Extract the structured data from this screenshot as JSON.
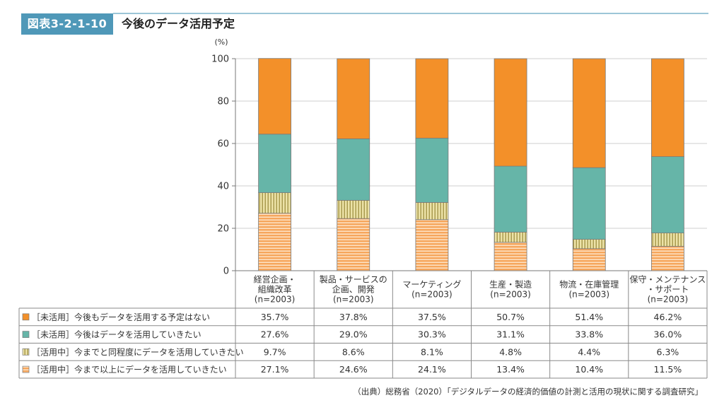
{
  "figure": {
    "label": "図表3-2-1-10",
    "title": "今後のデータ活用予定",
    "source": "（出典）総務省（2020）「デジタルデータの経済的価値の計測と活用の現状に関する調査研究」"
  },
  "chart_data": {
    "type": "bar",
    "stacked": true,
    "ylabel": "(%)",
    "ylim": [
      0,
      100
    ],
    "yticks": [
      0,
      20,
      40,
      60,
      80,
      100
    ],
    "grid": true,
    "categories": [
      [
        "経営企画・",
        "組織改革",
        "(n=2003)"
      ],
      [
        "製品・サービスの",
        "企画、開発",
        "(n=2003)"
      ],
      [
        "マーケティング",
        "(n=2003)"
      ],
      [
        "生産・製造",
        "(n=2003)"
      ],
      [
        "物流・在庫管理",
        "(n=2003)"
      ],
      [
        "保守・メンテナンス",
        "・サポート",
        "(n=2003)"
      ]
    ],
    "series": [
      {
        "name": "［活用中］今まで以上にデータを活用していきたい",
        "color": "#f6a65c",
        "pattern": "horizontal-lines",
        "values": [
          27.1,
          24.6,
          24.1,
          13.4,
          10.4,
          11.5
        ],
        "labels": [
          "27.1%",
          "24.6%",
          "24.1%",
          "13.4%",
          "10.4%",
          "11.5%"
        ]
      },
      {
        "name": "［活用中］今までと同程度にデータを活用していきたい",
        "color": "#e8dfa6",
        "pattern": "vertical-lines",
        "values": [
          9.7,
          8.6,
          8.1,
          4.8,
          4.4,
          6.3
        ],
        "labels": [
          "9.7%",
          "8.6%",
          "8.1%",
          "4.8%",
          "4.4%",
          "6.3%"
        ]
      },
      {
        "name": "［未活用］今後はデータを活用していきたい",
        "color": "#66b5a8",
        "pattern": "solid",
        "values": [
          27.6,
          29.0,
          30.3,
          31.1,
          33.8,
          36.0
        ],
        "labels": [
          "27.6%",
          "29.0%",
          "30.3%",
          "31.1%",
          "33.8%",
          "36.0%"
        ]
      },
      {
        "name": "［未活用］今後もデータを活用する予定はない",
        "color": "#f39029",
        "pattern": "solid",
        "values": [
          35.7,
          37.8,
          37.5,
          50.7,
          51.4,
          46.2
        ],
        "labels": [
          "35.7%",
          "37.8%",
          "37.5%",
          "50.7%",
          "51.4%",
          "46.2%"
        ]
      }
    ],
    "table_row_order": [
      3,
      2,
      1,
      0
    ]
  }
}
